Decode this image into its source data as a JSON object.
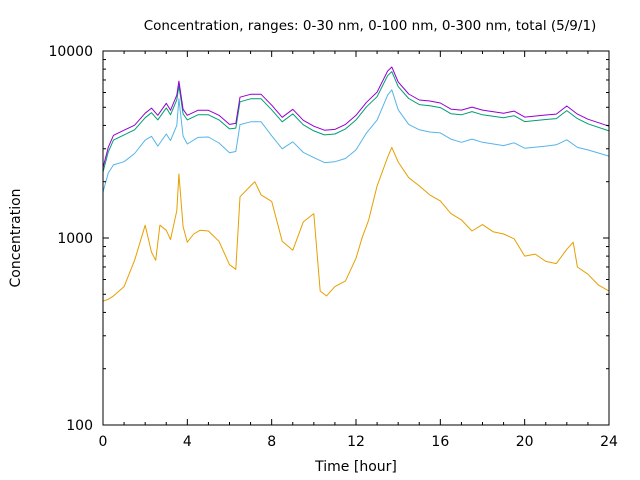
{
  "chart_data": {
    "type": "line",
    "title": "Concentration, ranges: 0-30 nm, 0-100 nm, 0-300 nm, total (5/9/1)",
    "xlabel": "Time [hour]",
    "ylabel": "Concentration",
    "xlim": [
      0,
      24
    ],
    "ylim": [
      100,
      10000
    ],
    "yscale": "log",
    "grid": false,
    "legend": "none",
    "x_ticks": [
      {
        "value": 0,
        "label": "0"
      },
      {
        "value": 4,
        "label": "4"
      },
      {
        "value": 8,
        "label": "8"
      },
      {
        "value": 12,
        "label": "12"
      },
      {
        "value": 16,
        "label": "16"
      },
      {
        "value": 20,
        "label": "20"
      },
      {
        "value": 24,
        "label": "24"
      }
    ],
    "y_ticks": [
      {
        "value": 100,
        "label": "100"
      },
      {
        "value": 1000,
        "label": "1000"
      },
      {
        "value": 10000,
        "label": "10000"
      }
    ],
    "series": [
      {
        "name": "total",
        "color": "#9400d3",
        "x": [
          0,
          0.25,
          0.5,
          1,
          1.5,
          2,
          2.3,
          2.6,
          3,
          3.2,
          3.5,
          3.6,
          3.8,
          4,
          4.5,
          5,
          5.5,
          6,
          6.3,
          6.5,
          7,
          7.5,
          8,
          8.5,
          9,
          9.5,
          10,
          10.5,
          11,
          11.5,
          12,
          12.5,
          13,
          13.5,
          13.7,
          14,
          14.5,
          15,
          15.5,
          16,
          16.5,
          17,
          17.5,
          18,
          19,
          19.5,
          20,
          21,
          21.5,
          22,
          22.5,
          23,
          24
        ],
        "y": [
          2380,
          3060,
          3540,
          3770,
          4010,
          4650,
          4950,
          4530,
          5250,
          4820,
          5800,
          6900,
          4880,
          4530,
          4820,
          4820,
          4530,
          4050,
          4100,
          5660,
          5870,
          5870,
          5130,
          4420,
          4880,
          4260,
          3960,
          3770,
          3810,
          4050,
          4530,
          5320,
          6030,
          7810,
          8210,
          6830,
          5890,
          5470,
          5400,
          5270,
          4890,
          4830,
          5010,
          4830,
          4650,
          4770,
          4430,
          4550,
          4600,
          5080,
          4600,
          4320,
          3960
        ]
      },
      {
        "name": "0-300 nm",
        "color": "#009e73",
        "x": [
          0,
          0.25,
          0.5,
          1,
          1.5,
          2,
          2.3,
          2.6,
          3,
          3.2,
          3.5,
          3.6,
          3.8,
          4,
          4.5,
          5,
          5.5,
          6,
          6.3,
          6.5,
          7,
          7.5,
          8,
          8.5,
          9,
          9.5,
          10,
          10.5,
          11,
          11.5,
          12,
          12.5,
          13,
          13.5,
          13.7,
          14,
          14.5,
          15,
          15.5,
          16,
          16.5,
          17,
          17.5,
          18,
          19,
          19.5,
          20,
          21,
          21.5,
          22,
          22.5,
          23,
          24
        ],
        "y": [
          2250,
          2890,
          3340,
          3560,
          3790,
          4400,
          4680,
          4280,
          4960,
          4560,
          5480,
          6520,
          4610,
          4280,
          4560,
          4560,
          4280,
          3830,
          3870,
          5350,
          5550,
          5550,
          4850,
          4180,
          4610,
          4030,
          3740,
          3560,
          3600,
          3830,
          4280,
          5030,
          5700,
          7380,
          7760,
          6450,
          5570,
          5170,
          5100,
          4980,
          4620,
          4560,
          4740,
          4560,
          4400,
          4510,
          4190,
          4300,
          4350,
          4800,
          4350,
          4080,
          3740
        ]
      },
      {
        "name": "0-100 nm",
        "color": "#56b4e9",
        "x": [
          0,
          0.25,
          0.5,
          1,
          1.5,
          2,
          2.3,
          2.6,
          3,
          3.2,
          3.5,
          3.6,
          3.8,
          4,
          4.5,
          5,
          5.5,
          6,
          6.3,
          6.5,
          7,
          7.5,
          8,
          8.5,
          9,
          9.5,
          10,
          10.5,
          11,
          11.5,
          12,
          12.5,
          13,
          13.5,
          13.7,
          14,
          14.5,
          15,
          15.5,
          16,
          16.5,
          17,
          17.5,
          18,
          19,
          19.5,
          20,
          21,
          21.5,
          22,
          22.5,
          23,
          24
        ],
        "y": [
          1760,
          2230,
          2460,
          2560,
          2830,
          3340,
          3500,
          3100,
          3600,
          3320,
          4000,
          5550,
          3500,
          3180,
          3450,
          3470,
          3220,
          2860,
          2900,
          4040,
          4180,
          4180,
          3520,
          3000,
          3270,
          2870,
          2690,
          2530,
          2560,
          2660,
          2960,
          3650,
          4270,
          5800,
          6200,
          4850,
          4050,
          3790,
          3690,
          3650,
          3380,
          3250,
          3380,
          3250,
          3120,
          3230,
          3020,
          3100,
          3150,
          3350,
          3050,
          2960,
          2740
        ]
      },
      {
        "name": "0-30 nm",
        "color": "#e69f00",
        "x": [
          0,
          0.25,
          0.5,
          1,
          1.5,
          2,
          2.3,
          2.5,
          2.7,
          3,
          3.2,
          3.5,
          3.6,
          3.8,
          4,
          4.3,
          4.6,
          5,
          5.5,
          6,
          6.3,
          6.5,
          7,
          7.2,
          7.5,
          8,
          8.5,
          9,
          9.5,
          10,
          10.3,
          10.6,
          11,
          11.5,
          12,
          12.3,
          12.6,
          13,
          13.5,
          13.7,
          14,
          14.5,
          15,
          15.5,
          16,
          16.5,
          17,
          17.5,
          18,
          18.5,
          19,
          19.5,
          20,
          20.5,
          21,
          21.5,
          22,
          22.3,
          22.5,
          23,
          23.5,
          24
        ],
        "y": [
          460,
          470,
          490,
          550,
          760,
          1170,
          840,
          760,
          1170,
          1100,
          980,
          1400,
          2200,
          1150,
          950,
          1050,
          1100,
          1090,
          960,
          720,
          680,
          1660,
          1900,
          2000,
          1700,
          1570,
          960,
          860,
          1220,
          1350,
          520,
          490,
          550,
          590,
          780,
          1010,
          1250,
          1900,
          2700,
          3050,
          2550,
          2100,
          1900,
          1700,
          1580,
          1350,
          1250,
          1090,
          1180,
          1080,
          1050,
          990,
          800,
          820,
          750,
          730,
          870,
          950,
          700,
          640,
          560,
          520
        ]
      }
    ]
  }
}
